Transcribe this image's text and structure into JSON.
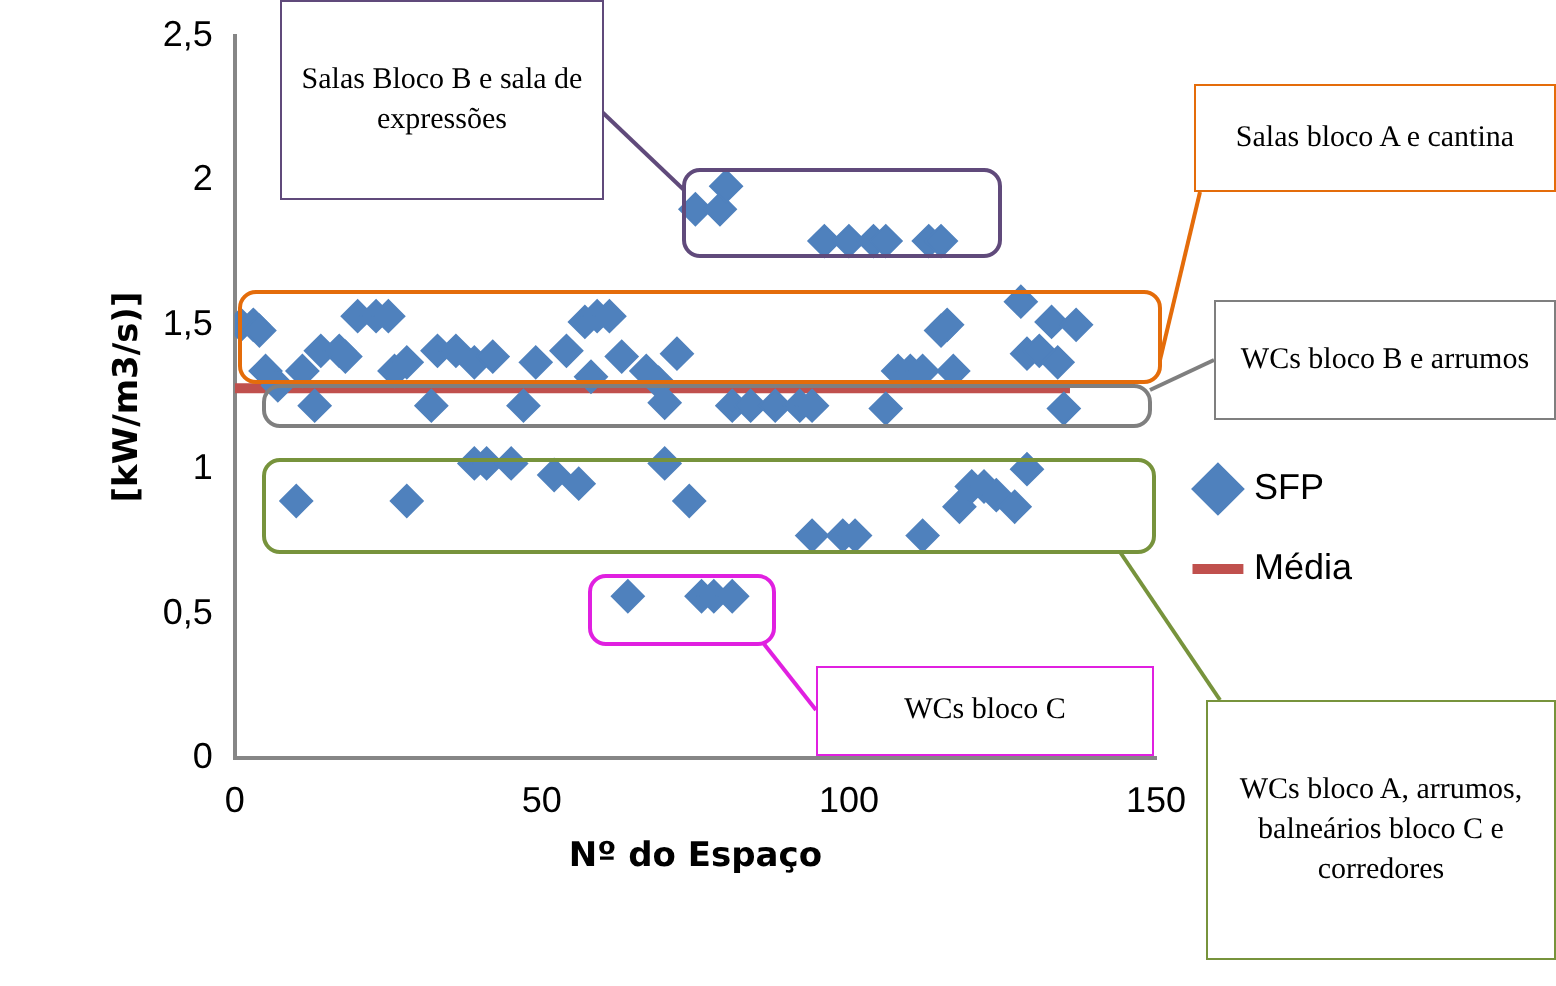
{
  "chart_data": {
    "type": "scatter",
    "xlabel": "Nº do Espaço",
    "ylabel": "[kW/m3/s)]",
    "xlim": [
      0,
      150
    ],
    "xticks": [
      0,
      50,
      100,
      150
    ],
    "ylim": [
      0,
      2.5
    ],
    "yticks": [
      0,
      {
        "value": 0.5,
        "label": "0,5"
      },
      1,
      {
        "value": 1.5,
        "label": "1,5"
      },
      2,
      {
        "value": 2.5,
        "label": "2,5"
      }
    ],
    "grid": false,
    "legend": "right",
    "marker": "diamond",
    "series": [
      {
        "name": "SFP",
        "color": "#4f81bd",
        "x": [
          1,
          3,
          4,
          5,
          7,
          10,
          11,
          13,
          14,
          17,
          18,
          20,
          23,
          25,
          26,
          28,
          28,
          32,
          33,
          36,
          39,
          39,
          41,
          42,
          45,
          47,
          49,
          52,
          54,
          56,
          57,
          58,
          59,
          61,
          63,
          64,
          67,
          69,
          70,
          70,
          72,
          74,
          75,
          76,
          78,
          79,
          80,
          81,
          81,
          84,
          88,
          92,
          94,
          94,
          96,
          99,
          100,
          101,
          104,
          106,
          106,
          108,
          110,
          112,
          112,
          113,
          115,
          115,
          116,
          117,
          118,
          120,
          122,
          124,
          127,
          128,
          129,
          129,
          131,
          133,
          134,
          135,
          137
        ],
        "values": [
          1.5,
          1.5,
          1.48,
          1.34,
          1.29,
          0.89,
          1.34,
          1.22,
          1.41,
          1.41,
          1.39,
          1.53,
          1.53,
          1.53,
          1.34,
          1.37,
          0.89,
          1.22,
          1.41,
          1.41,
          1.37,
          1.02,
          1.02,
          1.39,
          1.02,
          1.22,
          1.37,
          0.98,
          1.41,
          0.95,
          1.51,
          1.32,
          1.53,
          1.53,
          1.39,
          0.56,
          1.34,
          1.3,
          1.23,
          1.02,
          1.4,
          0.89,
          1.9,
          0.56,
          0.56,
          1.9,
          1.98,
          1.22,
          0.56,
          1.22,
          1.22,
          1.22,
          1.22,
          0.77,
          1.79,
          0.77,
          1.79,
          0.77,
          1.79,
          1.79,
          1.21,
          1.34,
          1.34,
          1.34,
          0.77,
          1.79,
          1.79,
          1.48,
          1.5,
          1.34,
          0.87,
          0.94,
          0.94,
          0.91,
          0.87,
          1.58,
          1.0,
          1.4,
          1.41,
          1.51,
          1.37,
          1.21,
          1.5
        ]
      },
      {
        "name": "Média",
        "type": "line",
        "color": "#c0504d",
        "x": [
          0,
          136
        ],
        "values": [
          1.28,
          1.28
        ],
        "marker": "none"
      }
    ],
    "annotations": [
      "Salas Bloco B e sala de expressões",
      "Salas bloco A e cantina",
      "WCs bloco B e arrumos",
      "WCs bloco C",
      "WCs bloco A, arrumos, balneários bloco C e corredores"
    ]
  }
}
